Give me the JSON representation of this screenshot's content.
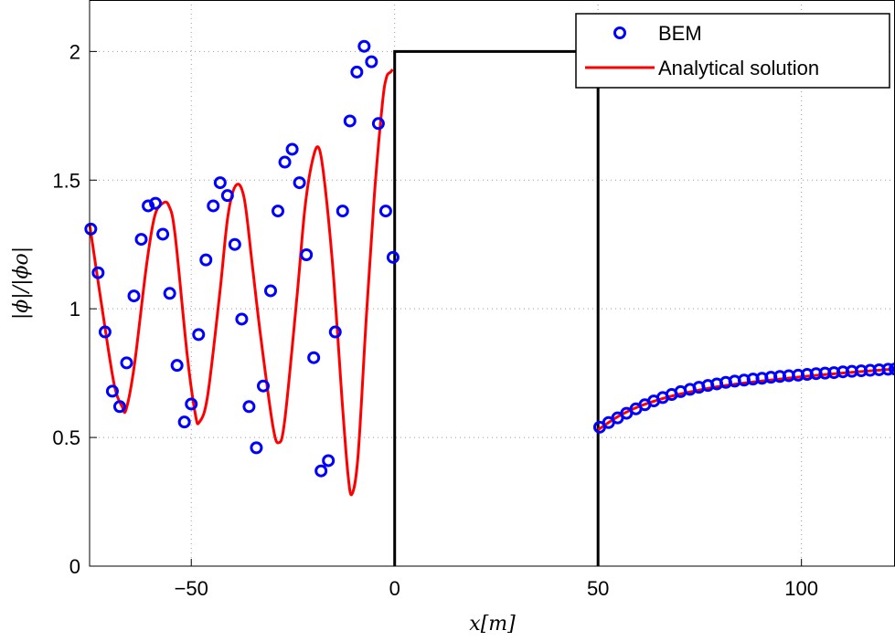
{
  "chart_data": {
    "type": "line",
    "xlabel": "x[m]",
    "ylabel": "|ϕ|/|ϕo|",
    "xlim": [
      -75,
      123
    ],
    "ylim": [
      0,
      2.2
    ],
    "xticks": [
      -50,
      0,
      50,
      100
    ],
    "xtick_labels": [
      "−50",
      "0",
      "50",
      "100"
    ],
    "yticks": [
      0,
      0.5,
      1,
      1.5,
      2
    ],
    "ytick_labels": [
      "0",
      "0.5",
      "1",
      "1.5",
      "2"
    ],
    "grid": true,
    "legend_position": "top-right",
    "structure": {
      "x": [
        0,
        0,
        50,
        50
      ],
      "y": [
        0,
        2,
        2,
        0
      ]
    },
    "series": [
      {
        "name": "BEM",
        "style": "markers",
        "color": "#0000ff",
        "x": [
          -74.7,
          -72.9,
          -71.2,
          -69.4,
          -67.6,
          -65.9,
          -64.1,
          -62.3,
          -60.6,
          -58.8,
          -57.0,
          -55.3,
          -53.5,
          -51.7,
          -50.0,
          -48.2,
          -46.4,
          -44.6,
          -42.9,
          -41.1,
          -39.3,
          -37.6,
          -35.8,
          -34.0,
          -32.3,
          -30.5,
          -28.7,
          -27.0,
          -25.2,
          -23.4,
          -21.7,
          -19.9,
          -18.1,
          -16.3,
          -14.6,
          -12.8,
          -11.0,
          -9.3,
          -7.5,
          -5.7,
          -4.0,
          -2.2,
          -0.4,
          50.4,
          52.6,
          54.8,
          57.0,
          59.3,
          61.5,
          63.7,
          65.9,
          68.1,
          70.3,
          72.6,
          74.8,
          77.0,
          79.2,
          81.4,
          83.6,
          85.9,
          88.1,
          90.3,
          92.5,
          94.7,
          96.9,
          99.2,
          101.4,
          103.6,
          105.8,
          108.0,
          110.2,
          112.4,
          114.7,
          116.9,
          119.1,
          121.3,
          123.0
        ],
        "y": [
          1.31,
          1.14,
          0.91,
          0.68,
          0.62,
          0.79,
          1.05,
          1.27,
          1.4,
          1.41,
          1.29,
          1.06,
          0.78,
          0.56,
          0.63,
          0.9,
          1.19,
          1.4,
          1.49,
          1.44,
          1.25,
          0.96,
          0.62,
          0.46,
          0.7,
          1.07,
          1.38,
          1.57,
          1.62,
          1.49,
          1.21,
          0.81,
          0.37,
          0.41,
          0.91,
          1.38,
          1.73,
          1.92,
          2.02,
          1.96,
          1.72,
          1.38,
          1.2,
          0.54,
          0.558,
          0.576,
          0.594,
          0.611,
          0.627,
          0.642,
          0.655,
          0.667,
          0.678,
          0.687,
          0.695,
          0.702,
          0.708,
          0.714,
          0.719,
          0.723,
          0.727,
          0.73,
          0.734,
          0.737,
          0.74,
          0.742,
          0.745,
          0.748,
          0.75,
          0.752,
          0.755,
          0.757,
          0.759,
          0.761,
          0.763,
          0.765,
          0.766
        ]
      },
      {
        "name": "Analytical solution",
        "style": "line",
        "color": "#ff0000",
        "x": [
          -75,
          -72,
          -69,
          -67,
          -66,
          -64,
          -61,
          -59,
          -57,
          -55.5,
          -54,
          -51,
          -49,
          -48,
          -46,
          -43,
          -41,
          -39,
          -37,
          -35,
          -33,
          -30,
          -28.5,
          -27,
          -24,
          -22,
          -20,
          -18.5,
          -17,
          -15,
          -13,
          -11.5,
          -10.5,
          -9,
          -7,
          -5,
          -3,
          -2,
          -1,
          -0.5,
          "break",
          50,
          55,
          60,
          65,
          70,
          80,
          90,
          100,
          110,
          123
        ],
        "y": [
          1.33,
          1.01,
          0.71,
          0.62,
          0.61,
          0.78,
          1.17,
          1.36,
          1.41,
          1.4,
          1.29,
          0.82,
          0.59,
          0.56,
          0.66,
          1.06,
          1.36,
          1.48,
          1.43,
          1.17,
          0.9,
          0.55,
          0.48,
          0.57,
          1.05,
          1.4,
          1.59,
          1.62,
          1.46,
          1.12,
          0.66,
          0.36,
          0.28,
          0.43,
          0.96,
          1.44,
          1.8,
          1.9,
          1.92,
          1.93,
          "break",
          0.53,
          0.582,
          0.62,
          0.647,
          0.668,
          0.699,
          0.719,
          0.736,
          0.75,
          0.766
        ]
      }
    ]
  }
}
